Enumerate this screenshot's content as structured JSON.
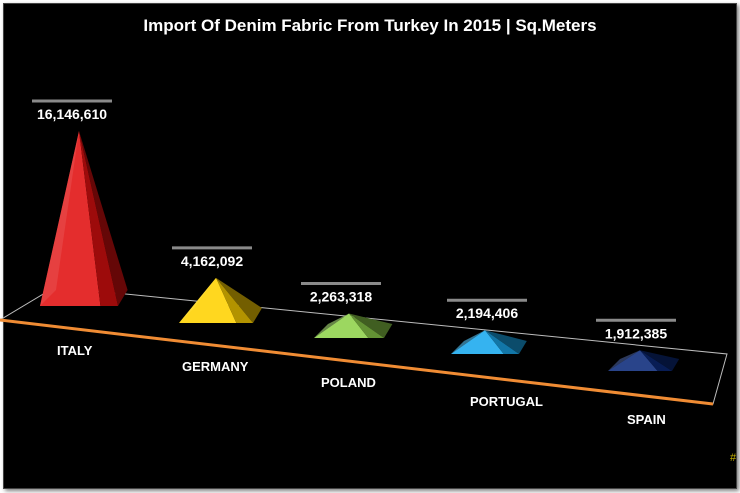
{
  "chart_data": {
    "type": "bar",
    "style": "3d-pyramid",
    "title": "Import Of Denim Fabric From Turkey In 2015 | Sq.Meters",
    "categories": [
      "ITALY",
      "GERMANY",
      "POLAND",
      "PORTUGAL",
      "SPAIN"
    ],
    "values": [
      16146610,
      4162092,
      2263318,
      2194406,
      1912385
    ],
    "data_labels": [
      "16,146,610",
      "4,162,092",
      "2,263,318",
      "2,194,406",
      "1,912,385"
    ],
    "colors": [
      "#e01010",
      "#ffd200",
      "#8ed14a",
      "#19a9ee",
      "#0c2a7a"
    ],
    "background": "#000000",
    "floor_edge_color": "#f08c34",
    "grid": false,
    "legend": "none"
  },
  "corner_mark": "#"
}
